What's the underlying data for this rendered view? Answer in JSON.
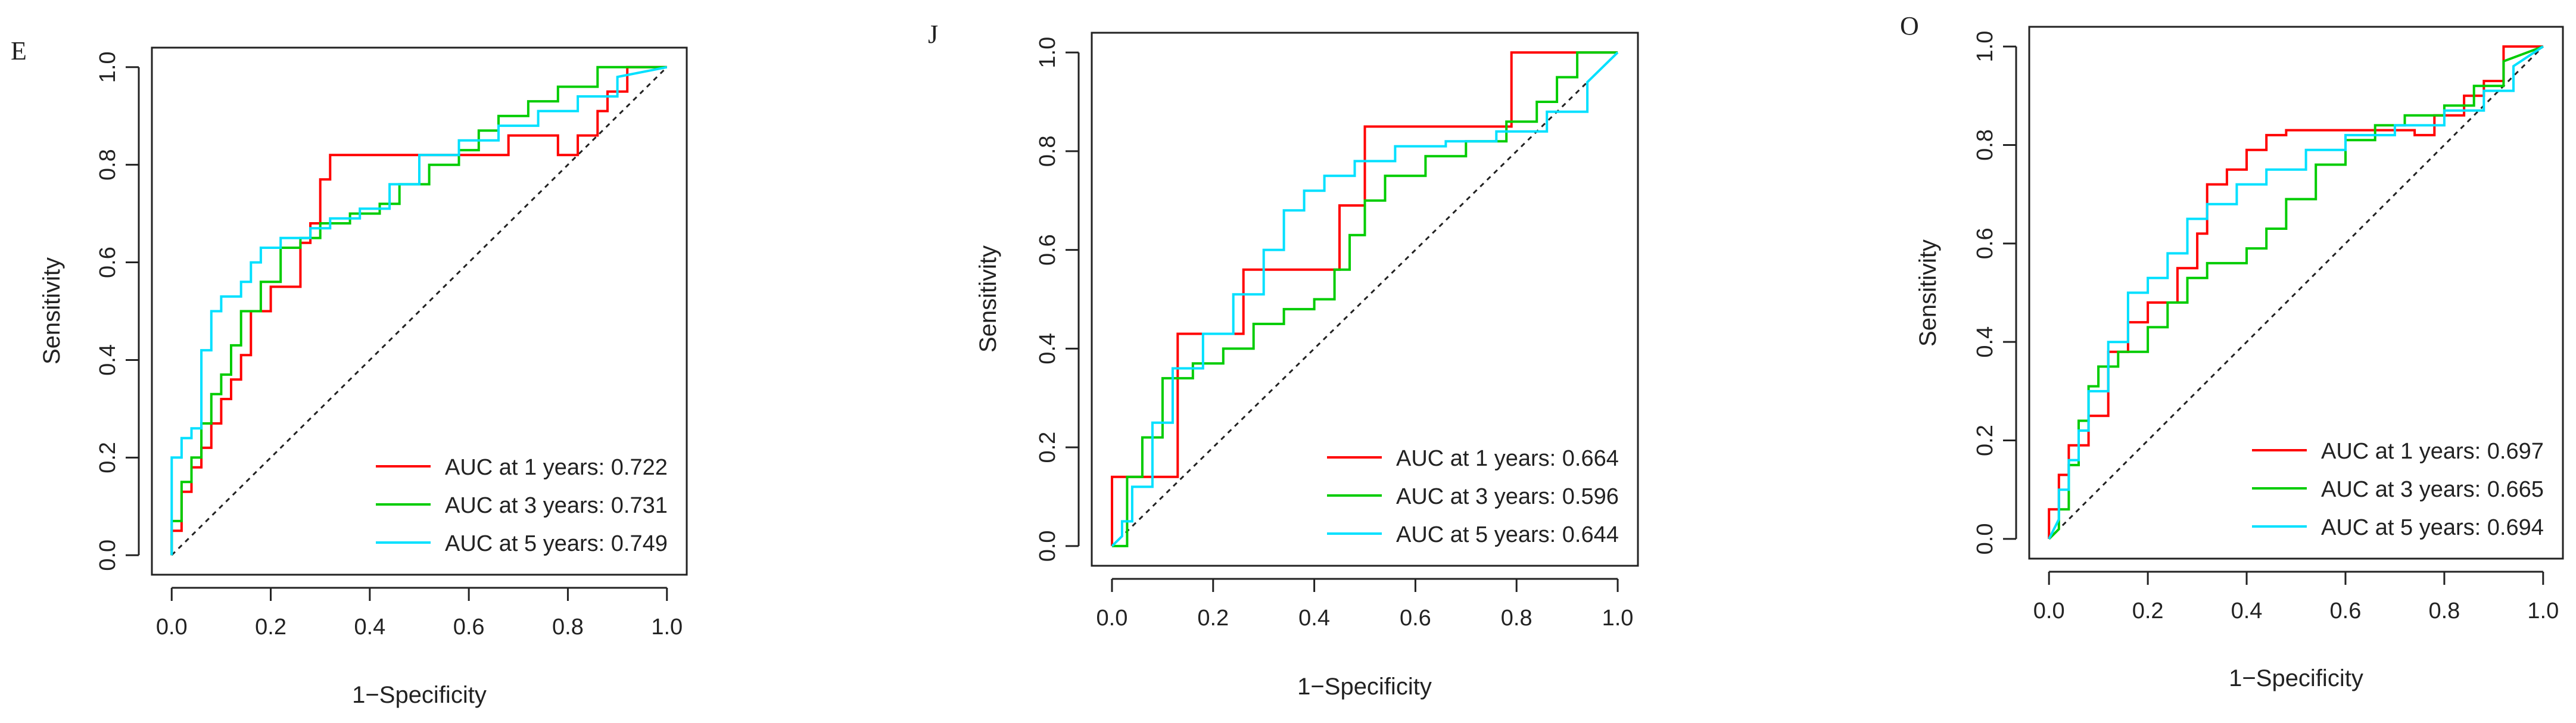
{
  "chart_data": [
    {
      "type": "line",
      "panel_label": "E",
      "xlabel": "1−Specificity",
      "ylabel": "Sensitivity",
      "xlim": [
        0,
        1
      ],
      "ylim": [
        0,
        1
      ],
      "xticks": [
        "0.0",
        "0.2",
        "0.4",
        "0.6",
        "0.8",
        "1.0"
      ],
      "yticks": [
        "0.0",
        "0.2",
        "0.4",
        "0.6",
        "0.8",
        "1.0"
      ],
      "legend_position": "bottom-right",
      "reference_line": "diagonal",
      "series": [
        {
          "name": "AUC at 1 years: 0.722",
          "color": "#ff0000",
          "x": [
            0,
            0,
            0.02,
            0.02,
            0.04,
            0.04,
            0.06,
            0.06,
            0.08,
            0.08,
            0.1,
            0.1,
            0.12,
            0.12,
            0.14,
            0.14,
            0.16,
            0.16,
            0.2,
            0.2,
            0.26,
            0.26,
            0.28,
            0.28,
            0.3,
            0.3,
            0.32,
            0.32,
            0.68,
            0.68,
            0.78,
            0.78,
            0.82,
            0.82,
            0.86,
            0.86,
            0.88,
            0.88,
            0.92,
            0.92,
            1.0
          ],
          "y": [
            0,
            0.05,
            0.05,
            0.13,
            0.13,
            0.18,
            0.18,
            0.22,
            0.22,
            0.27,
            0.27,
            0.32,
            0.32,
            0.36,
            0.36,
            0.41,
            0.41,
            0.5,
            0.5,
            0.55,
            0.55,
            0.64,
            0.64,
            0.68,
            0.68,
            0.77,
            0.77,
            0.82,
            0.82,
            0.86,
            0.86,
            0.82,
            0.82,
            0.86,
            0.86,
            0.91,
            0.91,
            0.95,
            0.95,
            1.0,
            1.0
          ]
        },
        {
          "name": "AUC at 3 years: 0.731",
          "color": "#00cc00",
          "x": [
            0,
            0,
            0.02,
            0.02,
            0.04,
            0.04,
            0.06,
            0.06,
            0.08,
            0.08,
            0.1,
            0.1,
            0.12,
            0.12,
            0.14,
            0.14,
            0.18,
            0.18,
            0.22,
            0.22,
            0.26,
            0.26,
            0.3,
            0.3,
            0.36,
            0.36,
            0.42,
            0.42,
            0.46,
            0.46,
            0.52,
            0.52,
            0.58,
            0.58,
            0.62,
            0.62,
            0.66,
            0.66,
            0.72,
            0.72,
            0.78,
            0.78,
            0.86,
            0.86,
            0.94,
            0.94,
            1.0
          ],
          "y": [
            0,
            0.07,
            0.07,
            0.15,
            0.15,
            0.2,
            0.2,
            0.27,
            0.27,
            0.33,
            0.33,
            0.37,
            0.37,
            0.43,
            0.43,
            0.5,
            0.5,
            0.56,
            0.56,
            0.63,
            0.63,
            0.65,
            0.65,
            0.68,
            0.68,
            0.7,
            0.7,
            0.72,
            0.72,
            0.76,
            0.76,
            0.8,
            0.8,
            0.83,
            0.83,
            0.87,
            0.87,
            0.9,
            0.9,
            0.93,
            0.93,
            0.96,
            0.96,
            1.0,
            1.0,
            1.0,
            1.0
          ]
        },
        {
          "name": "AUC at 5 years: 0.749",
          "color": "#00e0ff",
          "x": [
            0,
            0,
            0.02,
            0.02,
            0.04,
            0.04,
            0.06,
            0.06,
            0.08,
            0.08,
            0.1,
            0.1,
            0.14,
            0.14,
            0.16,
            0.16,
            0.18,
            0.18,
            0.22,
            0.22,
            0.28,
            0.28,
            0.32,
            0.32,
            0.38,
            0.38,
            0.44,
            0.44,
            0.5,
            0.5,
            0.58,
            0.58,
            0.66,
            0.66,
            0.74,
            0.74,
            0.82,
            0.82,
            0.9,
            0.9,
            1.0
          ],
          "y": [
            0,
            0.2,
            0.2,
            0.24,
            0.24,
            0.26,
            0.26,
            0.42,
            0.42,
            0.5,
            0.5,
            0.53,
            0.53,
            0.56,
            0.56,
            0.6,
            0.6,
            0.63,
            0.63,
            0.65,
            0.65,
            0.67,
            0.67,
            0.69,
            0.69,
            0.71,
            0.71,
            0.76,
            0.76,
            0.82,
            0.82,
            0.85,
            0.85,
            0.88,
            0.88,
            0.91,
            0.91,
            0.94,
            0.94,
            0.98,
            1.0
          ]
        }
      ]
    },
    {
      "type": "line",
      "panel_label": "J",
      "xlabel": "1−Specificity",
      "ylabel": "Sensitivity",
      "xlim": [
        0,
        1
      ],
      "ylim": [
        0,
        1
      ],
      "xticks": [
        "0.0",
        "0.2",
        "0.4",
        "0.6",
        "0.8",
        "1.0"
      ],
      "yticks": [
        "0.0",
        "0.2",
        "0.4",
        "0.6",
        "0.8",
        "1.0"
      ],
      "legend_position": "bottom-right",
      "reference_line": "diagonal",
      "series": [
        {
          "name": "AUC at 1 years: 0.664",
          "color": "#ff0000",
          "x": [
            0,
            0,
            0.04,
            0.04,
            0.13,
            0.13,
            0.26,
            0.26,
            0.45,
            0.45,
            0.5,
            0.5,
            0.79,
            0.79,
            0.92,
            0.92,
            1.0
          ],
          "y": [
            0,
            0.14,
            0.14,
            0.14,
            0.14,
            0.43,
            0.43,
            0.56,
            0.56,
            0.69,
            0.69,
            0.85,
            0.85,
            1.0,
            1.0,
            1.0,
            1.0
          ]
        },
        {
          "name": "AUC at 3 years: 0.596",
          "color": "#00cc00",
          "x": [
            0,
            0.02,
            0.03,
            0.03,
            0.06,
            0.06,
            0.1,
            0.1,
            0.16,
            0.16,
            0.22,
            0.22,
            0.28,
            0.28,
            0.34,
            0.34,
            0.4,
            0.4,
            0.44,
            0.44,
            0.47,
            0.47,
            0.5,
            0.5,
            0.54,
            0.54,
            0.62,
            0.62,
            0.7,
            0.7,
            0.78,
            0.78,
            0.84,
            0.84,
            0.88,
            0.88,
            0.92,
            0.92,
            1.0
          ],
          "y": [
            0,
            0.0,
            0.0,
            0.14,
            0.14,
            0.22,
            0.22,
            0.34,
            0.34,
            0.37,
            0.37,
            0.4,
            0.4,
            0.45,
            0.45,
            0.48,
            0.48,
            0.5,
            0.5,
            0.56,
            0.56,
            0.63,
            0.63,
            0.7,
            0.7,
            0.75,
            0.75,
            0.79,
            0.79,
            0.82,
            0.82,
            0.86,
            0.86,
            0.9,
            0.9,
            0.95,
            0.95,
            1.0,
            1.0
          ]
        },
        {
          "name": "AUC at 5 years: 0.644",
          "color": "#00e0ff",
          "x": [
            0,
            0.02,
            0.02,
            0.04,
            0.04,
            0.08,
            0.08,
            0.12,
            0.12,
            0.18,
            0.18,
            0.24,
            0.24,
            0.3,
            0.3,
            0.34,
            0.34,
            0.38,
            0.38,
            0.42,
            0.42,
            0.48,
            0.48,
            0.56,
            0.56,
            0.66,
            0.66,
            0.76,
            0.76,
            0.86,
            0.86,
            0.94,
            0.94,
            1.0
          ],
          "y": [
            0,
            0.02,
            0.05,
            0.05,
            0.12,
            0.12,
            0.25,
            0.25,
            0.36,
            0.36,
            0.43,
            0.43,
            0.51,
            0.51,
            0.6,
            0.6,
            0.68,
            0.68,
            0.72,
            0.72,
            0.75,
            0.75,
            0.78,
            0.78,
            0.81,
            0.81,
            0.82,
            0.82,
            0.84,
            0.84,
            0.88,
            0.88,
            0.94,
            1.0
          ]
        }
      ]
    },
    {
      "type": "line",
      "panel_label": "O",
      "xlabel": "1−Specificity",
      "ylabel": "Sensitivity",
      "xlim": [
        0,
        1
      ],
      "ylim": [
        0,
        1
      ],
      "xticks": [
        "0.0",
        "0.2",
        "0.4",
        "0.6",
        "0.8",
        "1.0"
      ],
      "yticks": [
        "0.0",
        "0.2",
        "0.4",
        "0.6",
        "0.8",
        "1.0"
      ],
      "legend_position": "bottom-right",
      "reference_line": "diagonal",
      "series": [
        {
          "name": "AUC at 1 years: 0.697",
          "color": "#ff0000",
          "x": [
            0,
            0,
            0.02,
            0.02,
            0.04,
            0.04,
            0.08,
            0.08,
            0.12,
            0.12,
            0.16,
            0.16,
            0.2,
            0.2,
            0.26,
            0.26,
            0.3,
            0.3,
            0.32,
            0.32,
            0.36,
            0.36,
            0.4,
            0.4,
            0.44,
            0.44,
            0.48,
            0.48,
            0.74,
            0.74,
            0.78,
            0.78,
            0.84,
            0.84,
            0.88,
            0.88,
            0.92,
            0.92,
            0.96,
            0.96,
            1.0
          ],
          "y": [
            0,
            0.06,
            0.06,
            0.13,
            0.13,
            0.19,
            0.19,
            0.25,
            0.25,
            0.38,
            0.38,
            0.44,
            0.44,
            0.48,
            0.48,
            0.55,
            0.55,
            0.62,
            0.62,
            0.72,
            0.72,
            0.75,
            0.75,
            0.79,
            0.79,
            0.82,
            0.82,
            0.83,
            0.83,
            0.82,
            0.82,
            0.86,
            0.86,
            0.9,
            0.9,
            0.93,
            0.93,
            1.0,
            1.0,
            1.0,
            1.0
          ]
        },
        {
          "name": "AUC at 3 years: 0.665",
          "color": "#00cc00",
          "x": [
            0,
            0.02,
            0.02,
            0.04,
            0.04,
            0.06,
            0.06,
            0.08,
            0.08,
            0.1,
            0.1,
            0.14,
            0.14,
            0.2,
            0.2,
            0.24,
            0.24,
            0.28,
            0.28,
            0.32,
            0.32,
            0.4,
            0.4,
            0.44,
            0.44,
            0.48,
            0.48,
            0.54,
            0.54,
            0.6,
            0.6,
            0.66,
            0.66,
            0.72,
            0.72,
            0.8,
            0.8,
            0.86,
            0.86,
            0.92,
            0.92,
            1.0
          ],
          "y": [
            0,
            0.02,
            0.06,
            0.06,
            0.15,
            0.15,
            0.24,
            0.24,
            0.31,
            0.31,
            0.35,
            0.35,
            0.38,
            0.38,
            0.43,
            0.43,
            0.48,
            0.48,
            0.53,
            0.53,
            0.56,
            0.56,
            0.59,
            0.59,
            0.63,
            0.63,
            0.69,
            0.69,
            0.76,
            0.76,
            0.81,
            0.81,
            0.84,
            0.84,
            0.86,
            0.86,
            0.88,
            0.88,
            0.92,
            0.92,
            0.97,
            1.0
          ]
        },
        {
          "name": "AUC at 5 years: 0.694",
          "color": "#00e0ff",
          "x": [
            0,
            0.02,
            0.02,
            0.04,
            0.04,
            0.06,
            0.06,
            0.08,
            0.08,
            0.12,
            0.12,
            0.16,
            0.16,
            0.2,
            0.2,
            0.24,
            0.24,
            0.28,
            0.28,
            0.32,
            0.32,
            0.38,
            0.38,
            0.44,
            0.44,
            0.52,
            0.52,
            0.6,
            0.6,
            0.7,
            0.7,
            0.8,
            0.8,
            0.88,
            0.88,
            0.94,
            0.94,
            1.0
          ],
          "y": [
            0,
            0.04,
            0.1,
            0.1,
            0.16,
            0.16,
            0.22,
            0.22,
            0.3,
            0.3,
            0.4,
            0.4,
            0.5,
            0.5,
            0.53,
            0.53,
            0.58,
            0.58,
            0.65,
            0.65,
            0.68,
            0.68,
            0.72,
            0.72,
            0.75,
            0.75,
            0.79,
            0.79,
            0.82,
            0.82,
            0.84,
            0.84,
            0.87,
            0.87,
            0.91,
            0.91,
            0.96,
            1.0
          ]
        }
      ]
    }
  ]
}
